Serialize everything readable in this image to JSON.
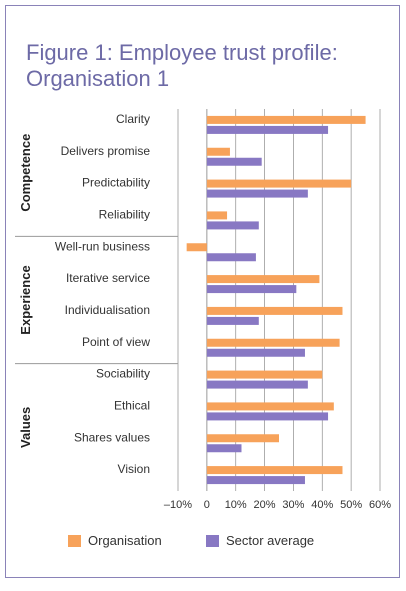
{
  "title_lines": [
    "Figure 1: Employee trust profile:",
    "Organisation 1"
  ],
  "colors": {
    "organisation": "#f7a25a",
    "sector": "#8878c3",
    "panel_border": "#8a83b8",
    "title": "#6d6aa6"
  },
  "chart_data": {
    "type": "bar",
    "orientation": "horizontal",
    "groups": [
      {
        "name": "Competence",
        "categories": [
          "Clarity",
          "Delivers promise",
          "Predictability",
          "Reliability"
        ]
      },
      {
        "name": "Experience",
        "categories": [
          "Well-run business",
          "Iterative service",
          "Individualisation",
          "Point of view"
        ]
      },
      {
        "name": "Values",
        "categories": [
          "Sociability",
          "Ethical",
          "Shares values",
          "Vision"
        ]
      }
    ],
    "categories": [
      "Clarity",
      "Delivers promise",
      "Predictability",
      "Reliability",
      "Well-run business",
      "Iterative service",
      "Individualisation",
      "Point of view",
      "Sociability",
      "Ethical",
      "Shares values",
      "Vision"
    ],
    "series": [
      {
        "name": "Organisation",
        "color": "#f7a25a",
        "values": [
          55,
          8,
          50,
          7,
          -7,
          39,
          47,
          46,
          40,
          44,
          25,
          47
        ]
      },
      {
        "name": "Sector average",
        "color": "#8878c3",
        "values": [
          42,
          19,
          35,
          18,
          17,
          31,
          18,
          34,
          35,
          42,
          12,
          34
        ]
      }
    ],
    "xlim": [
      -10,
      60
    ],
    "x_ticks": [
      -10,
      0,
      10,
      20,
      30,
      40,
      50,
      60
    ],
    "x_tick_labels": [
      "–10%",
      "0",
      "10%",
      "20%",
      "30%",
      "40%",
      "50%",
      "60%"
    ],
    "grid": "vertical",
    "legend_position": "bottom"
  }
}
